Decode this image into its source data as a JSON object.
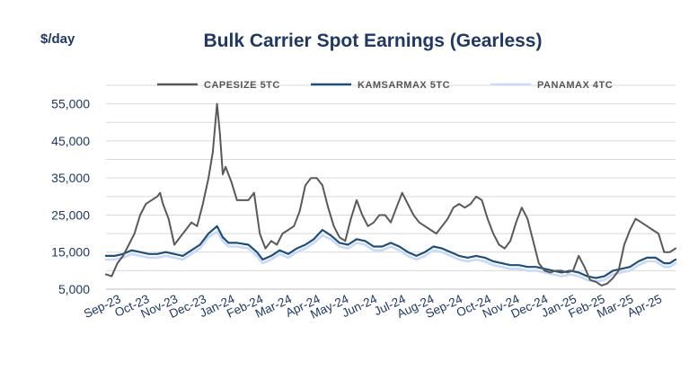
{
  "chart_data": {
    "type": "line",
    "title": "Bulk Carrier Spot Earnings (Gearless)",
    "unit_label": "$/day",
    "ylim": [
      5000,
      60000
    ],
    "y_ticks": [
      5000,
      15000,
      25000,
      35000,
      45000,
      55000
    ],
    "y_tick_labels": [
      "5,000",
      "15,000",
      "25,000",
      "35,000",
      "45,000",
      "55,000"
    ],
    "x_tick_labels": [
      "Sep-23",
      "Oct-23",
      "Nov-23",
      "Dec-23",
      "Jan-24",
      "Feb-24",
      "Mar-24",
      "Apr-24",
      "May-24",
      "Jun-24",
      "Jul-24",
      "Aug-24",
      "Sep-24",
      "Oct-24",
      "Nov-24",
      "Dec-24",
      "Jan-25",
      "Feb-25",
      "Mar-25",
      "Apr-25"
    ],
    "x_range": [
      0,
      20
    ],
    "grid": true,
    "legend_position": "top",
    "series": [
      {
        "name": "CAPESIZE 5TC",
        "color": "#595959",
        "points": [
          [
            0,
            9000
          ],
          [
            0.2,
            8500
          ],
          [
            0.4,
            12000
          ],
          [
            0.6,
            14000
          ],
          [
            0.8,
            17000
          ],
          [
            1.0,
            20000
          ],
          [
            1.2,
            25000
          ],
          [
            1.4,
            28000
          ],
          [
            1.6,
            29000
          ],
          [
            1.8,
            30000
          ],
          [
            1.9,
            31000
          ],
          [
            2.0,
            28000
          ],
          [
            2.2,
            24000
          ],
          [
            2.4,
            17000
          ],
          [
            2.6,
            19000
          ],
          [
            2.8,
            21000
          ],
          [
            3.0,
            23000
          ],
          [
            3.2,
            22000
          ],
          [
            3.4,
            28000
          ],
          [
            3.6,
            35000
          ],
          [
            3.75,
            42000
          ],
          [
            3.9,
            55000
          ],
          [
            4.0,
            47000
          ],
          [
            4.1,
            36000
          ],
          [
            4.2,
            38000
          ],
          [
            4.4,
            34000
          ],
          [
            4.6,
            29000
          ],
          [
            4.8,
            29000
          ],
          [
            5.0,
            29000
          ],
          [
            5.2,
            31000
          ],
          [
            5.4,
            20000
          ],
          [
            5.6,
            16000
          ],
          [
            5.8,
            18000
          ],
          [
            6.0,
            17000
          ],
          [
            6.2,
            20000
          ],
          [
            6.4,
            21000
          ],
          [
            6.6,
            22000
          ],
          [
            6.8,
            26000
          ],
          [
            7.0,
            33000
          ],
          [
            7.2,
            35000
          ],
          [
            7.4,
            35000
          ],
          [
            7.6,
            33000
          ],
          [
            7.8,
            27000
          ],
          [
            8.0,
            22000
          ],
          [
            8.2,
            19000
          ],
          [
            8.4,
            18000
          ],
          [
            8.6,
            24000
          ],
          [
            8.8,
            29000
          ],
          [
            9.0,
            25000
          ],
          [
            9.2,
            22000
          ],
          [
            9.4,
            23000
          ],
          [
            9.6,
            25000
          ],
          [
            9.8,
            25000
          ],
          [
            10.0,
            23000
          ],
          [
            10.2,
            27000
          ],
          [
            10.4,
            31000
          ],
          [
            10.6,
            28000
          ],
          [
            10.8,
            25000
          ],
          [
            11.0,
            23000
          ],
          [
            11.2,
            22000
          ],
          [
            11.4,
            21000
          ],
          [
            11.6,
            20000
          ],
          [
            11.8,
            22000
          ],
          [
            12.0,
            24000
          ],
          [
            12.2,
            27000
          ],
          [
            12.4,
            28000
          ],
          [
            12.6,
            27000
          ],
          [
            12.8,
            28000
          ],
          [
            13.0,
            30000
          ],
          [
            13.2,
            29000
          ],
          [
            13.4,
            24000
          ],
          [
            13.6,
            20000
          ],
          [
            13.8,
            17000
          ],
          [
            14.0,
            16000
          ],
          [
            14.2,
            18000
          ],
          [
            14.4,
            23000
          ],
          [
            14.6,
            27000
          ],
          [
            14.8,
            24000
          ],
          [
            15.0,
            18000
          ],
          [
            15.2,
            12000
          ],
          [
            15.4,
            10000
          ],
          [
            15.6,
            9500
          ],
          [
            15.8,
            10000
          ],
          [
            16.0,
            10000
          ],
          [
            16.2,
            9500
          ],
          [
            16.4,
            10000
          ],
          [
            16.6,
            14000
          ],
          [
            16.8,
            11000
          ],
          [
            17.0,
            7500
          ],
          [
            17.2,
            7000
          ],
          [
            17.4,
            6000
          ],
          [
            17.6,
            6500
          ],
          [
            17.8,
            8000
          ],
          [
            18.0,
            10000
          ],
          [
            18.2,
            17000
          ],
          [
            18.4,
            21000
          ],
          [
            18.6,
            24000
          ],
          [
            18.8,
            23000
          ],
          [
            19.0,
            22000
          ],
          [
            19.2,
            21000
          ],
          [
            19.4,
            20000
          ],
          [
            19.6,
            15000
          ],
          [
            19.8,
            15000
          ],
          [
            20.0,
            16000
          ]
        ]
      },
      {
        "name": "KAMSARMAX 5TC",
        "color": "#1f4e79",
        "points": [
          [
            0,
            14000
          ],
          [
            0.3,
            14000
          ],
          [
            0.6,
            14500
          ],
          [
            0.9,
            15500
          ],
          [
            1.2,
            15000
          ],
          [
            1.5,
            14500
          ],
          [
            1.8,
            14500
          ],
          [
            2.1,
            15000
          ],
          [
            2.4,
            14500
          ],
          [
            2.7,
            14000
          ],
          [
            3.0,
            15500
          ],
          [
            3.3,
            17000
          ],
          [
            3.6,
            20000
          ],
          [
            3.9,
            22000
          ],
          [
            4.1,
            19000
          ],
          [
            4.3,
            17500
          ],
          [
            4.6,
            17500
          ],
          [
            5.0,
            17000
          ],
          [
            5.3,
            15000
          ],
          [
            5.5,
            13000
          ],
          [
            5.8,
            14000
          ],
          [
            6.1,
            15500
          ],
          [
            6.4,
            14500
          ],
          [
            6.7,
            16000
          ],
          [
            7.0,
            17000
          ],
          [
            7.3,
            18500
          ],
          [
            7.6,
            21000
          ],
          [
            7.9,
            19500
          ],
          [
            8.2,
            17500
          ],
          [
            8.5,
            17000
          ],
          [
            8.8,
            18500
          ],
          [
            9.1,
            18000
          ],
          [
            9.4,
            16500
          ],
          [
            9.7,
            16500
          ],
          [
            10.0,
            17500
          ],
          [
            10.3,
            16500
          ],
          [
            10.6,
            15000
          ],
          [
            10.9,
            14000
          ],
          [
            11.2,
            15000
          ],
          [
            11.5,
            16500
          ],
          [
            11.8,
            16000
          ],
          [
            12.1,
            15000
          ],
          [
            12.4,
            14000
          ],
          [
            12.7,
            13500
          ],
          [
            13.0,
            14000
          ],
          [
            13.3,
            13500
          ],
          [
            13.6,
            12500
          ],
          [
            13.9,
            12000
          ],
          [
            14.2,
            11500
          ],
          [
            14.5,
            11500
          ],
          [
            14.8,
            11000
          ],
          [
            15.1,
            11000
          ],
          [
            15.4,
            10500
          ],
          [
            15.7,
            10000
          ],
          [
            16.0,
            9500
          ],
          [
            16.3,
            10000
          ],
          [
            16.6,
            9500
          ],
          [
            16.9,
            8500
          ],
          [
            17.2,
            8000
          ],
          [
            17.5,
            8500
          ],
          [
            17.8,
            10000
          ],
          [
            18.1,
            10500
          ],
          [
            18.4,
            11000
          ],
          [
            18.7,
            12500
          ],
          [
            19.0,
            13500
          ],
          [
            19.3,
            13500
          ],
          [
            19.6,
            12000
          ],
          [
            19.8,
            12000
          ],
          [
            20.0,
            13000
          ]
        ]
      },
      {
        "name": "PANAMAX 4TC",
        "color": "#c9daf8",
        "points": [
          [
            0,
            13000
          ],
          [
            0.3,
            13000
          ],
          [
            0.6,
            13500
          ],
          [
            0.9,
            14500
          ],
          [
            1.2,
            14000
          ],
          [
            1.5,
            13500
          ],
          [
            1.8,
            13500
          ],
          [
            2.1,
            14000
          ],
          [
            2.4,
            13500
          ],
          [
            2.7,
            13000
          ],
          [
            3.0,
            14500
          ],
          [
            3.3,
            16000
          ],
          [
            3.6,
            19000
          ],
          [
            3.9,
            20500
          ],
          [
            4.1,
            18000
          ],
          [
            4.3,
            16500
          ],
          [
            4.6,
            16500
          ],
          [
            5.0,
            16000
          ],
          [
            5.3,
            14000
          ],
          [
            5.5,
            12000
          ],
          [
            5.8,
            13000
          ],
          [
            6.1,
            14500
          ],
          [
            6.4,
            13500
          ],
          [
            6.7,
            15000
          ],
          [
            7.0,
            16000
          ],
          [
            7.3,
            17500
          ],
          [
            7.6,
            19500
          ],
          [
            7.9,
            18500
          ],
          [
            8.2,
            16500
          ],
          [
            8.5,
            16000
          ],
          [
            8.8,
            17500
          ],
          [
            9.1,
            17000
          ],
          [
            9.4,
            15500
          ],
          [
            9.7,
            15500
          ],
          [
            10.0,
            16500
          ],
          [
            10.3,
            15500
          ],
          [
            10.6,
            14000
          ],
          [
            10.9,
            13000
          ],
          [
            11.2,
            14000
          ],
          [
            11.5,
            15500
          ],
          [
            11.8,
            15000
          ],
          [
            12.1,
            14000
          ],
          [
            12.4,
            13000
          ],
          [
            12.7,
            12500
          ],
          [
            13.0,
            13000
          ],
          [
            13.3,
            12500
          ],
          [
            13.6,
            11500
          ],
          [
            13.9,
            11000
          ],
          [
            14.2,
            10500
          ],
          [
            14.5,
            10500
          ],
          [
            14.8,
            10000
          ],
          [
            15.1,
            10000
          ],
          [
            15.4,
            9500
          ],
          [
            15.7,
            9000
          ],
          [
            16.0,
            8500
          ],
          [
            16.3,
            9000
          ],
          [
            16.6,
            8500
          ],
          [
            16.9,
            7500
          ],
          [
            17.2,
            7000
          ],
          [
            17.5,
            7500
          ],
          [
            17.8,
            9000
          ],
          [
            18.1,
            9500
          ],
          [
            18.4,
            10000
          ],
          [
            18.7,
            11500
          ],
          [
            19.0,
            12500
          ],
          [
            19.3,
            12500
          ],
          [
            19.6,
            11000
          ],
          [
            19.8,
            11000
          ],
          [
            20.0,
            12000
          ]
        ]
      }
    ]
  }
}
